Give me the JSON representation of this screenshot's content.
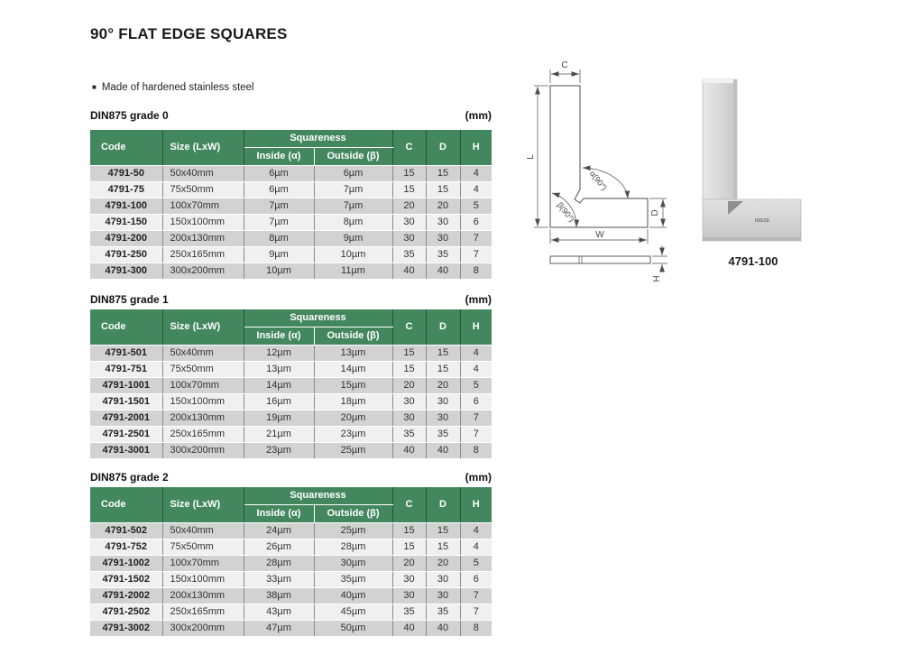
{
  "page": {
    "title": "90° FLAT EDGE SQUARES",
    "bullet": "Made of hardened stainless steel"
  },
  "columns": {
    "code": "Code",
    "size": "Size (LxW)",
    "squareness": "Squareness",
    "inside": "Inside (α)",
    "outside": "Outside (β)",
    "c": "C",
    "d": "D",
    "h": "H"
  },
  "tables": [
    {
      "label": "DIN875 grade 0",
      "unit": "(mm)",
      "rows": [
        [
          "4791-50",
          "50x40mm",
          "6µm",
          "6µm",
          "15",
          "15",
          "4"
        ],
        [
          "4791-75",
          "75x50mm",
          "6µm",
          "7µm",
          "15",
          "15",
          "4"
        ],
        [
          "4791-100",
          "100x70mm",
          "7µm",
          "7µm",
          "20",
          "20",
          "5"
        ],
        [
          "4791-150",
          "150x100mm",
          "7µm",
          "8µm",
          "30",
          "30",
          "6"
        ],
        [
          "4791-200",
          "200x130mm",
          "8µm",
          "9µm",
          "30",
          "30",
          "7"
        ],
        [
          "4791-250",
          "250x165mm",
          "9µm",
          "10µm",
          "35",
          "35",
          "7"
        ],
        [
          "4791-300",
          "300x200mm",
          "10µm",
          "11µm",
          "40",
          "40",
          "8"
        ]
      ]
    },
    {
      "label": "DIN875 grade 1",
      "unit": "(mm)",
      "rows": [
        [
          "4791-501",
          "50x40mm",
          "12µm",
          "13µm",
          "15",
          "15",
          "4"
        ],
        [
          "4791-751",
          "75x50mm",
          "13µm",
          "14µm",
          "15",
          "15",
          "4"
        ],
        [
          "4791-1001",
          "100x70mm",
          "14µm",
          "15µm",
          "20",
          "20",
          "5"
        ],
        [
          "4791-1501",
          "150x100mm",
          "16µm",
          "18µm",
          "30",
          "30",
          "6"
        ],
        [
          "4791-2001",
          "200x130mm",
          "19µm",
          "20µm",
          "30",
          "30",
          "7"
        ],
        [
          "4791-2501",
          "250x165mm",
          "21µm",
          "23µm",
          "35",
          "35",
          "7"
        ],
        [
          "4791-3001",
          "300x200mm",
          "23µm",
          "25µm",
          "40",
          "40",
          "8"
        ]
      ]
    },
    {
      "label": "DIN875 grade 2",
      "unit": "(mm)",
      "rows": [
        [
          "4791-502",
          "50x40mm",
          "24µm",
          "25µm",
          "15",
          "15",
          "4"
        ],
        [
          "4791-752",
          "75x50mm",
          "26µm",
          "28µm",
          "15",
          "15",
          "4"
        ],
        [
          "4791-1002",
          "100x70mm",
          "28µm",
          "30µm",
          "20",
          "20",
          "5"
        ],
        [
          "4791-1502",
          "150x100mm",
          "33µm",
          "35µm",
          "30",
          "30",
          "6"
        ],
        [
          "4791-2002",
          "200x130mm",
          "38µm",
          "40µm",
          "30",
          "30",
          "7"
        ],
        [
          "4791-2502",
          "250x165mm",
          "43µm",
          "45µm",
          "35",
          "35",
          "7"
        ],
        [
          "4791-3002",
          "300x200mm",
          "47µm",
          "50µm",
          "40",
          "40",
          "8"
        ]
      ]
    }
  ],
  "diagram": {
    "c": "C",
    "l": "L",
    "w": "W",
    "d": "D",
    "h": "H",
    "alpha": "α(90°)",
    "beta": "β(90°)"
  },
  "product": {
    "code": "4791-100",
    "brand": "INSIZE"
  },
  "colors": {
    "header_green": "#43875f",
    "header_separator": "#2c4f3b",
    "row_gray": "#d2d2d2",
    "row_light": "#f0f0f0"
  }
}
